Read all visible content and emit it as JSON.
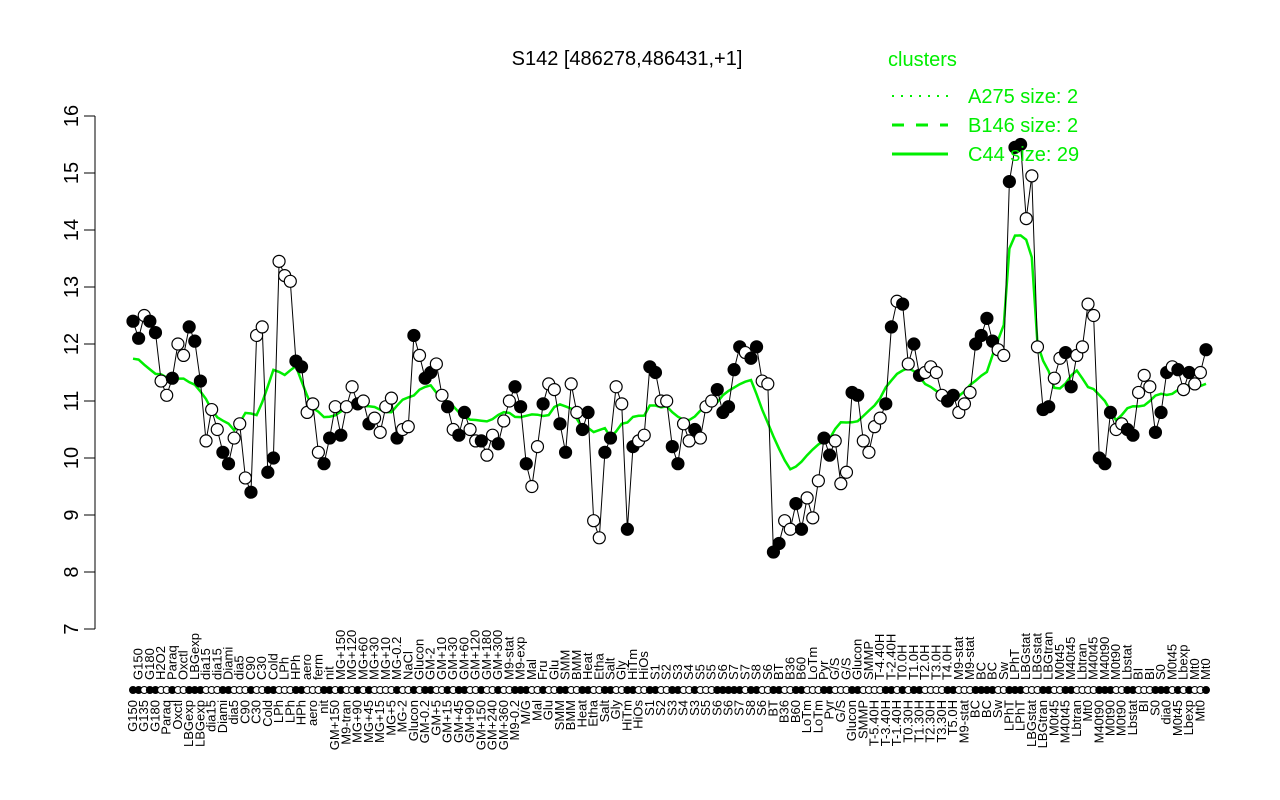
{
  "chart_data": {
    "type": "scatter",
    "title": "S142 [486278,486431,+1]",
    "xlabel": "",
    "ylabel": "",
    "ylim": [
      7,
      16
    ],
    "yticks": [
      7,
      8,
      9,
      10,
      11,
      12,
      13,
      14,
      15,
      16
    ],
    "grid": false,
    "legend": {
      "title": "clusters",
      "placement": "top-right",
      "color": "#00ee00",
      "entries": [
        {
          "label": "A275 size: 2",
          "style": "dotted"
        },
        {
          "label": "B146 size: 2",
          "style": "dashed"
        },
        {
          "label": "C44 size: 29",
          "style": "solid"
        }
      ]
    },
    "line_color": "#00ee00",
    "points": [
      [
        "G150",
        12.4,
        1
      ],
      [
        "G150",
        12.1,
        1
      ],
      [
        "G135",
        12.5,
        0
      ],
      [
        "G180",
        12.4,
        1
      ],
      [
        "G180",
        12.2,
        1
      ],
      [
        "H2O2",
        11.35,
        0
      ],
      [
        "Paraq",
        11.1,
        0
      ],
      [
        "Paraq",
        11.4,
        1
      ],
      [
        "Oxctl",
        12.0,
        0
      ],
      [
        "Oxctl",
        11.8,
        0
      ],
      [
        "LBGexp",
        12.3,
        1
      ],
      [
        "LBGexp",
        12.05,
        1
      ],
      [
        "LBGexp",
        11.35,
        1
      ],
      [
        "dia15",
        10.3,
        0
      ],
      [
        "dia15",
        10.85,
        0
      ],
      [
        "dia15",
        10.5,
        0
      ],
      [
        "Diami",
        10.1,
        1
      ],
      [
        "Diami",
        9.9,
        1
      ],
      [
        "dia5",
        10.35,
        0
      ],
      [
        "dia5",
        10.6,
        0
      ],
      [
        "C90",
        9.65,
        0
      ],
      [
        "C90",
        9.4,
        1
      ],
      [
        "C30",
        12.15,
        0
      ],
      [
        "C30",
        12.3,
        0
      ],
      [
        "Cold",
        9.75,
        1
      ],
      [
        "Cold",
        10.0,
        1
      ],
      [
        "LPh",
        13.45,
        0
      ],
      [
        "LPh",
        13.2,
        0
      ],
      [
        "LPh",
        13.1,
        0
      ],
      [
        "HPh",
        11.7,
        1
      ],
      [
        "HPh",
        11.6,
        1
      ],
      [
        "aero",
        10.8,
        0
      ],
      [
        "aero",
        10.95,
        0
      ],
      [
        "ferm",
        10.1,
        0
      ],
      [
        "nit",
        9.9,
        1
      ],
      [
        "nit",
        10.35,
        1
      ],
      [
        "GM+150",
        10.9,
        0
      ],
      [
        "MG+150",
        10.4,
        1
      ],
      [
        "M9-tran",
        10.9,
        0
      ],
      [
        "MG+120",
        11.25,
        0
      ],
      [
        "MG+90",
        10.95,
        1
      ],
      [
        "MG+60",
        11.0,
        0
      ],
      [
        "MG+45",
        10.6,
        1
      ],
      [
        "MG+30",
        10.7,
        0
      ],
      [
        "MG+15",
        10.45,
        0
      ],
      [
        "MG+10",
        10.9,
        0
      ],
      [
        "MG+5",
        11.05,
        0
      ],
      [
        "MG-0.2",
        10.35,
        1
      ],
      [
        "MG-2",
        10.5,
        0
      ],
      [
        "NaCl",
        10.55,
        0
      ],
      [
        "Glucon",
        12.15,
        1
      ],
      [
        "Glucon",
        11.8,
        0
      ],
      [
        "GM-0.2",
        11.4,
        1
      ],
      [
        "GM-2",
        11.5,
        1
      ],
      [
        "GM+5",
        11.65,
        0
      ],
      [
        "GM+10",
        11.1,
        0
      ],
      [
        "GM+15",
        10.9,
        1
      ],
      [
        "GM+30",
        10.5,
        0
      ],
      [
        "GM+45",
        10.4,
        1
      ],
      [
        "GM+60",
        10.8,
        1
      ],
      [
        "GM+90",
        10.5,
        0
      ],
      [
        "GM+120",
        10.3,
        0
      ],
      [
        "GM+150",
        10.3,
        1
      ],
      [
        "GM+180",
        10.05,
        0
      ],
      [
        "GM+240",
        10.4,
        0
      ],
      [
        "GM+300",
        10.25,
        1
      ],
      [
        "GM+360",
        10.65,
        0
      ],
      [
        "M9-stat",
        11.0,
        0
      ],
      [
        "M9-0.2",
        11.25,
        1
      ],
      [
        "M9-exp",
        10.9,
        1
      ],
      [
        "M/G",
        9.9,
        1
      ],
      [
        "Mal",
        9.5,
        0
      ],
      [
        "Mal",
        10.2,
        0
      ],
      [
        "Fru",
        10.95,
        1
      ],
      [
        "Glu",
        11.3,
        0
      ],
      [
        "Glu",
        11.2,
        0
      ],
      [
        "SMM",
        10.6,
        1
      ],
      [
        "SMM",
        10.1,
        1
      ],
      [
        "BMM",
        11.3,
        0
      ],
      [
        "BMM",
        10.8,
        0
      ],
      [
        "Heat",
        10.5,
        1
      ],
      [
        "Heat",
        10.8,
        1
      ],
      [
        "Etha",
        8.9,
        0
      ],
      [
        "Etha",
        8.6,
        0
      ],
      [
        "Salt",
        10.1,
        1
      ],
      [
        "Salt",
        10.35,
        1
      ],
      [
        "Gly",
        11.25,
        0
      ],
      [
        "Gly",
        10.95,
        0
      ],
      [
        "HiTm",
        8.75,
        1
      ],
      [
        "HiTm",
        10.2,
        1
      ],
      [
        "HiOs",
        10.3,
        0
      ],
      [
        "HiOs",
        10.4,
        0
      ],
      [
        "S1",
        11.6,
        1
      ],
      [
        "S1",
        11.5,
        1
      ],
      [
        "S2",
        11.0,
        0
      ],
      [
        "S2",
        11.0,
        0
      ],
      [
        "S3",
        10.2,
        1
      ],
      [
        "S3",
        9.9,
        1
      ],
      [
        "S4",
        10.6,
        0
      ],
      [
        "S4",
        10.3,
        0
      ],
      [
        "S3",
        10.5,
        1
      ],
      [
        "S5",
        10.35,
        0
      ],
      [
        "S5",
        10.9,
        0
      ],
      [
        "S5",
        11.0,
        0
      ],
      [
        "S6",
        11.2,
        1
      ],
      [
        "S6",
        10.8,
        1
      ],
      [
        "S6",
        10.9,
        1
      ],
      [
        "S7",
        11.55,
        1
      ],
      [
        "S7",
        11.95,
        1
      ],
      [
        "S7",
        11.85,
        0
      ],
      [
        "S8",
        11.75,
        1
      ],
      [
        "S8",
        11.95,
        1
      ],
      [
        "S6",
        11.35,
        0
      ],
      [
        "S6",
        11.3,
        0
      ],
      [
        "BT",
        8.35,
        1
      ],
      [
        "BT",
        8.5,
        1
      ],
      [
        "B36",
        8.9,
        0
      ],
      [
        "B36",
        8.75,
        0
      ],
      [
        "B60",
        9.2,
        1
      ],
      [
        "B60",
        8.75,
        1
      ],
      [
        "LoTm",
        9.3,
        0
      ],
      [
        "LoTm",
        8.95,
        0
      ],
      [
        "LoTm",
        9.6,
        0
      ],
      [
        "Pyr",
        10.35,
        1
      ],
      [
        "Pyr",
        10.05,
        1
      ],
      [
        "G/S",
        10.3,
        0
      ],
      [
        "G/S",
        9.55,
        0
      ],
      [
        "G/S",
        9.75,
        0
      ],
      [
        "Glucon",
        11.15,
        1
      ],
      [
        "Glucon",
        11.1,
        1
      ],
      [
        "SMMP",
        10.3,
        0
      ],
      [
        "SMMP",
        10.1,
        0
      ],
      [
        "T-5.40H",
        10.55,
        0
      ],
      [
        "T-4.40H",
        10.7,
        0
      ],
      [
        "T-3.40H",
        10.95,
        1
      ],
      [
        "T-2.40H",
        12.3,
        1
      ],
      [
        "T-1.40H",
        12.75,
        0
      ],
      [
        "T0.0H",
        12.7,
        1
      ],
      [
        "T0.30H",
        11.65,
        0
      ],
      [
        "T1.0H",
        12.0,
        1
      ],
      [
        "T1.30H",
        11.45,
        1
      ],
      [
        "T2.0H",
        11.5,
        0
      ],
      [
        "T2.30H",
        11.6,
        0
      ],
      [
        "T3.0H",
        11.5,
        0
      ],
      [
        "T3.30H",
        11.1,
        0
      ],
      [
        "T4.0H",
        11.0,
        1
      ],
      [
        "T5.0H",
        11.1,
        1
      ],
      [
        "M9-stat",
        10.8,
        0
      ],
      [
        "M9-stat",
        10.95,
        0
      ],
      [
        "M9-stat",
        11.15,
        0
      ],
      [
        "BC",
        12.0,
        1
      ],
      [
        "BC",
        12.15,
        1
      ],
      [
        "BC",
        12.45,
        1
      ],
      [
        "BC",
        12.05,
        1
      ],
      [
        "Sw",
        11.9,
        0
      ],
      [
        "Sw",
        11.8,
        0
      ],
      [
        "LPhT",
        14.85,
        1
      ],
      [
        "LPhT",
        15.45,
        1
      ],
      [
        "LPhT",
        15.5,
        1
      ],
      [
        "LBGstat",
        14.2,
        0
      ],
      [
        "LBGstat",
        14.95,
        0
      ],
      [
        "LBGstat",
        11.95,
        0
      ],
      [
        "LBGtran",
        10.85,
        1
      ],
      [
        "LBGtran",
        10.9,
        1
      ],
      [
        "M0t45",
        11.4,
        0
      ],
      [
        "M0t45",
        11.75,
        0
      ],
      [
        "M40t45",
        11.85,
        1
      ],
      [
        "M40t45",
        11.25,
        1
      ],
      [
        "Lbtran",
        11.8,
        0
      ],
      [
        "Lbtran",
        11.95,
        0
      ],
      [
        "Mt0",
        12.7,
        0
      ],
      [
        "M40t45",
        12.5,
        0
      ],
      [
        "M40t90",
        10.0,
        1
      ],
      [
        "M40t90",
        9.9,
        1
      ],
      [
        "M0t90",
        10.8,
        1
      ],
      [
        "M0t90",
        10.5,
        0
      ],
      [
        "M0t90",
        10.6,
        0
      ],
      [
        "Lbstat",
        10.5,
        1
      ],
      [
        "Lbstat",
        10.4,
        1
      ],
      [
        "BI",
        11.15,
        0
      ],
      [
        "BI",
        11.45,
        0
      ],
      [
        "BI",
        11.25,
        0
      ],
      [
        "S0",
        10.45,
        1
      ],
      [
        "S0",
        10.8,
        1
      ],
      [
        "dia0",
        11.5,
        1
      ],
      [
        "M0t45",
        11.6,
        0
      ],
      [
        "M0t45",
        11.55,
        1
      ],
      [
        "Lbexp",
        11.2,
        0
      ],
      [
        "Lbexp",
        11.5,
        1
      ],
      [
        "Mt0",
        11.3,
        0
      ],
      [
        "Mt0",
        11.5,
        0
      ],
      [
        "Mt0",
        11.9,
        1
      ]
    ]
  }
}
